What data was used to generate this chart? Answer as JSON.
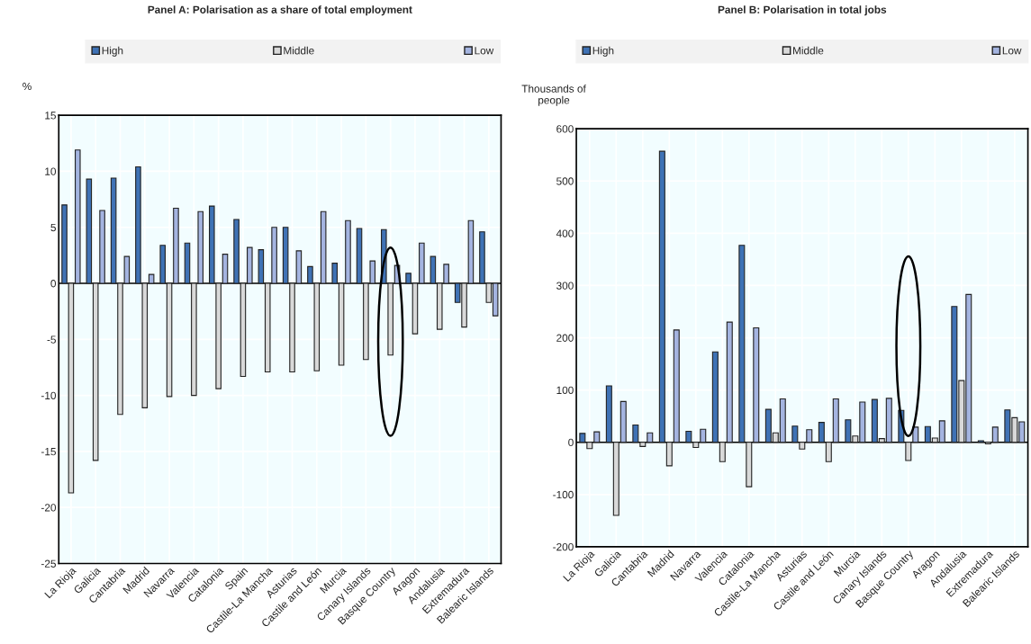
{
  "chart_data": [
    {
      "type": "bar",
      "title": "Panel A: Polarisation as a share of total employment",
      "ylabel": "%",
      "categories": [
        "La Rioja",
        "Galicia",
        "Cantabria",
        "Madrid",
        "Navarra",
        "Valencia",
        "Catalonia",
        "Spain",
        "Castile-La Mancha",
        "Asturias",
        "Castile and León",
        "Murcia",
        "Canary Islands",
        "Basque Country",
        "Aragon",
        "Andalusia",
        "Extremadura",
        "Balearic Islands"
      ],
      "series": [
        {
          "name": "High",
          "color": "#3f72b5",
          "values": [
            7.0,
            9.3,
            9.4,
            10.4,
            3.4,
            3.6,
            6.9,
            5.7,
            3.0,
            5.0,
            1.5,
            1.8,
            4.9,
            4.8,
            0.9,
            2.4,
            -1.7,
            4.6
          ]
        },
        {
          "name": "Middle",
          "color": "#d9d9d9",
          "values": [
            -18.7,
            -15.8,
            -11.7,
            -11.1,
            -10.1,
            -10.0,
            -9.4,
            -8.3,
            -7.9,
            -7.9,
            -7.8,
            -7.3,
            -6.8,
            -6.4,
            -4.5,
            -4.1,
            -3.9,
            -1.7
          ]
        },
        {
          "name": "Low",
          "color": "#a4b4e0",
          "values": [
            11.9,
            6.5,
            2.4,
            0.8,
            6.7,
            6.4,
            2.6,
            3.2,
            5.0,
            2.9,
            6.4,
            5.6,
            2.0,
            1.6,
            3.6,
            1.7,
            5.6,
            -2.9
          ]
        }
      ],
      "ylim": [
        -25,
        15
      ],
      "yticks": [
        -25,
        -20,
        -15,
        -10,
        -5,
        0,
        5,
        10,
        15
      ],
      "grid": true,
      "legend": "top"
    },
    {
      "type": "bar",
      "title": "Panel B: Polarisation in total jobs",
      "ylabel": "Thousands of\npeople",
      "categories": [
        "La Rioja",
        "Galicia",
        "Cantabria",
        "Madrid",
        "Navarra",
        "Valencia",
        "Catalonia",
        "Castile-La Mancha",
        "Asturias",
        "Castile and León",
        "Murcia",
        "Canary Islands",
        "Basque Country",
        "Aragon",
        "Andalusia",
        "Extremadura",
        "Balearic Islands"
      ],
      "series": [
        {
          "name": "High",
          "color": "#3f72b5",
          "values": [
            17,
            108,
            33,
            557,
            21,
            173,
            377,
            63,
            31,
            38,
            43,
            82,
            61,
            30,
            260,
            3,
            62
          ]
        },
        {
          "name": "Middle",
          "color": "#d9d9d9",
          "values": [
            -12,
            -140,
            -8,
            -45,
            -10,
            -37,
            -85,
            18,
            -13,
            -37,
            12,
            7,
            -35,
            8,
            118,
            -3,
            47
          ]
        },
        {
          "name": "Low",
          "color": "#a4b4e0",
          "values": [
            20,
            78,
            18,
            215,
            25,
            230,
            219,
            83,
            24,
            83,
            77,
            84,
            29,
            41,
            283,
            29,
            39
          ]
        }
      ],
      "ylim": [
        -200,
        600
      ],
      "yticks": [
        -200,
        -100,
        0,
        100,
        200,
        300,
        400,
        500,
        600
      ],
      "grid": true,
      "legend": "top"
    }
  ]
}
